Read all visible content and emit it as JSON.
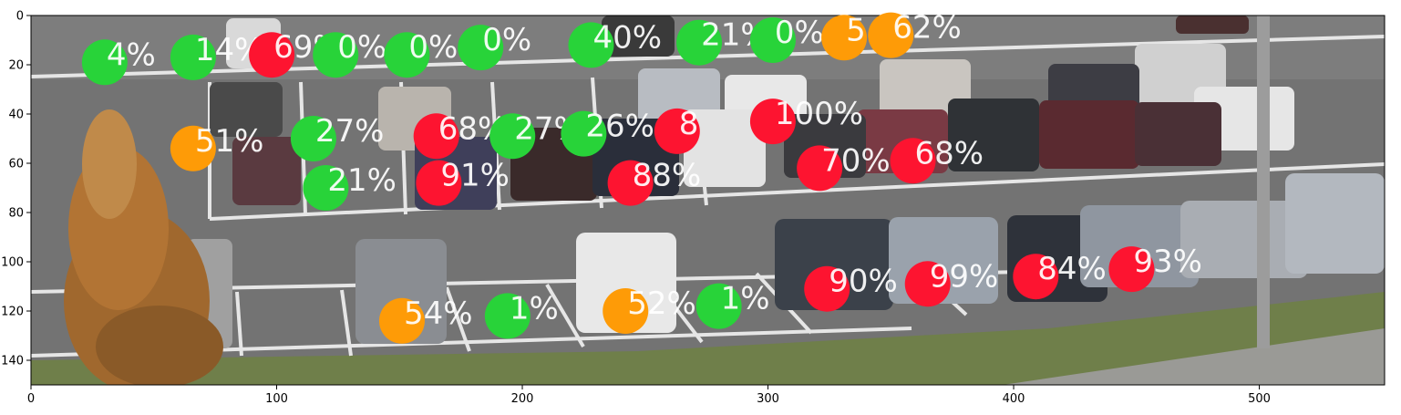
{
  "image": {
    "description_colors": {
      "asphalt": "#6b6b6b",
      "line": "#e8e8e8",
      "tree": "#a5682d",
      "grass": "#6f8f3a"
    }
  },
  "axes": {
    "xlim": [
      0,
      551
    ],
    "ylim": [
      150,
      0
    ],
    "xticks": [
      0,
      100,
      200,
      300,
      400,
      500
    ],
    "yticks": [
      0,
      20,
      40,
      60,
      80,
      100,
      120,
      140
    ],
    "xtick_labels": [
      "0",
      "100",
      "200",
      "300",
      "400",
      "500"
    ],
    "ytick_labels": [
      "0",
      "20",
      "40",
      "60",
      "80",
      "100",
      "120",
      "140"
    ]
  },
  "colors": {
    "green": "#28d339",
    "red": "#fd1430",
    "orange": "#fe9b07"
  },
  "markers": [
    {
      "x": 30,
      "y": 19,
      "label": "4%",
      "color": "green"
    },
    {
      "x": 66,
      "y": 17,
      "label": "14%",
      "color": "green"
    },
    {
      "x": 98,
      "y": 16,
      "label": "69%",
      "color": "red"
    },
    {
      "x": 124,
      "y": 16,
      "label": "0%",
      "color": "green"
    },
    {
      "x": 153,
      "y": 16,
      "label": "0%",
      "color": "green"
    },
    {
      "x": 183,
      "y": 13,
      "label": "0%",
      "color": "green"
    },
    {
      "x": 228,
      "y": 12,
      "label": "40%",
      "color": "green"
    },
    {
      "x": 272,
      "y": 11,
      "label": "21%",
      "color": "green"
    },
    {
      "x": 302,
      "y": 10,
      "label": "0%",
      "color": "green"
    },
    {
      "x": 331,
      "y": 9,
      "label": "5",
      "color": "orange"
    },
    {
      "x": 350,
      "y": 8,
      "label": "62%",
      "color": "orange"
    },
    {
      "x": 66,
      "y": 54,
      "label": "51%",
      "color": "orange"
    },
    {
      "x": 115,
      "y": 50,
      "label": "27%",
      "color": "green"
    },
    {
      "x": 165,
      "y": 49,
      "label": "68%",
      "color": "red"
    },
    {
      "x": 196,
      "y": 49,
      "label": "27%",
      "color": "green"
    },
    {
      "x": 225,
      "y": 48,
      "label": "26%",
      "color": "green"
    },
    {
      "x": 263,
      "y": 47,
      "label": "8",
      "color": "red"
    },
    {
      "x": 302,
      "y": 43,
      "label": "100%",
      "color": "red"
    },
    {
      "x": 120,
      "y": 70,
      "label": "21%",
      "color": "green"
    },
    {
      "x": 166,
      "y": 68,
      "label": "91%",
      "color": "red"
    },
    {
      "x": 244,
      "y": 68,
      "label": "88%",
      "color": "red"
    },
    {
      "x": 321,
      "y": 62,
      "label": "70%",
      "color": "red"
    },
    {
      "x": 359,
      "y": 59,
      "label": "68%",
      "color": "red"
    },
    {
      "x": 324,
      "y": 111,
      "label": "90%",
      "color": "red"
    },
    {
      "x": 365,
      "y": 109,
      "label": "99%",
      "color": "red"
    },
    {
      "x": 409,
      "y": 106,
      "label": "84%",
      "color": "red"
    },
    {
      "x": 448,
      "y": 103,
      "label": "93%",
      "color": "red"
    },
    {
      "x": 151,
      "y": 124,
      "label": "54%",
      "color": "orange"
    },
    {
      "x": 194,
      "y": 122,
      "label": "1%",
      "color": "green"
    },
    {
      "x": 242,
      "y": 120,
      "label": "52%",
      "color": "orange"
    },
    {
      "x": 280,
      "y": 118,
      "label": "1%",
      "color": "green"
    }
  ]
}
